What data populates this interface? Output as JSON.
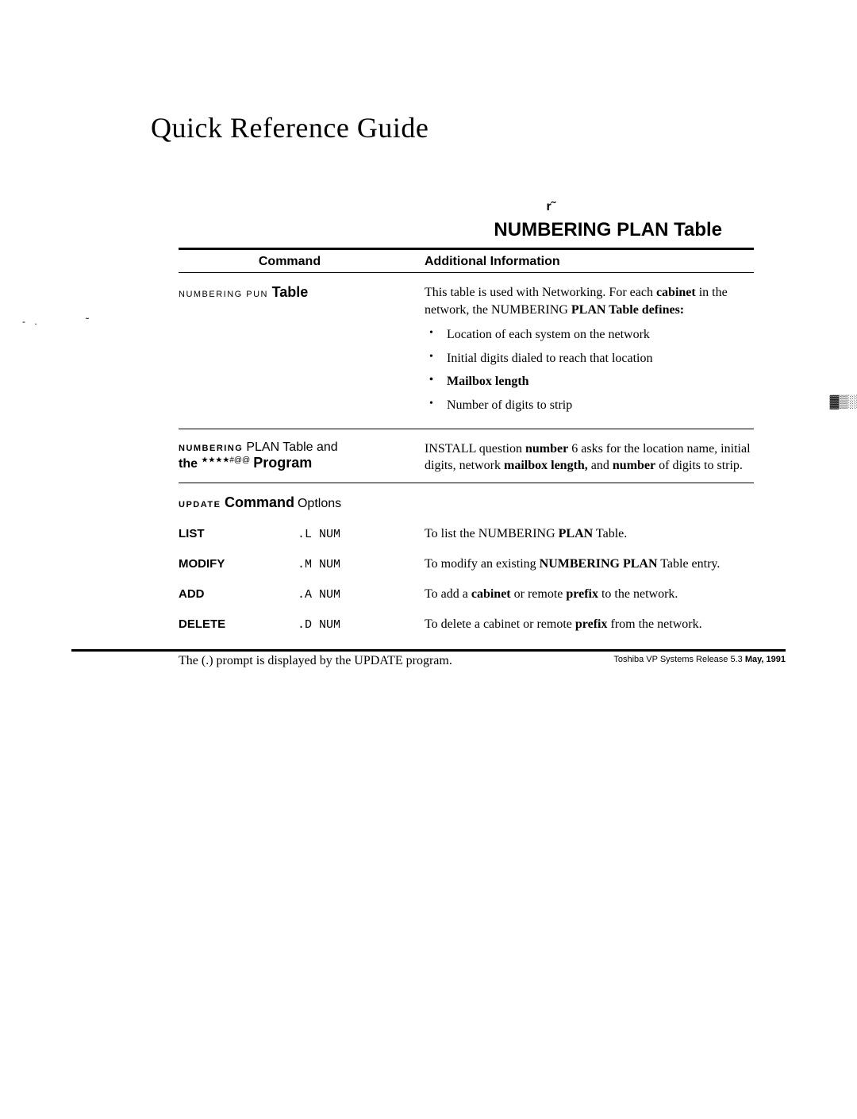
{
  "title": "Quick Reference Guide",
  "curl_mark": "r˜",
  "section_title_pre": "NUMBERING ",
  "section_title_mid": "PLAN",
  "section_title_post": " Table",
  "headers": {
    "command": "Command",
    "info": "Additional Information"
  },
  "margin_dots": "- .",
  "margin_tick": "˜",
  "edge_glyph": "▓▒░",
  "rows": {
    "r1": {
      "left_sc": "NUMBERING  PUN ",
      "left_bold": "Table",
      "desc_pre": "This table is used with Networking. For each ",
      "desc_bold1": "cabinet",
      "desc_mid": " in the network, the NUMBERING ",
      "desc_bold2": "PLAN Table defines:",
      "b1": "Location of each system on the network",
      "b2": "Initial digits dialed to reach that location",
      "b3": "Mailbox length",
      "b4": "Number of digits to strip"
    },
    "r2": {
      "left_sc1": "NUMBERING",
      "left_pl1": " PLAN Table and",
      "left_bold1": "the ",
      "left_glitch": "★★★★#@@",
      "left_bold2": " Program",
      "desc_pre": "INSTALL question ",
      "desc_b1": "number",
      "desc_mid1": " 6 asks for the location name, initial digits, network ",
      "desc_b2": "mailbox length,",
      "desc_mid2": " and ",
      "desc_b3": "number",
      "desc_post": " of digits to strip."
    }
  },
  "cmd_opt": {
    "sc": "UPDATE ",
    "bold": "Command",
    "tail": " Optlons"
  },
  "opts": {
    "o1": {
      "name": "LIST",
      "code": ".L NUM",
      "desc_pre": "To list the NUMBERING ",
      "desc_b": "PLAN",
      "desc_post": " Table."
    },
    "o2": {
      "name": "MODIFY",
      "code": ".M NUM",
      "desc_pre": "To modify an existing ",
      "desc_b": "NUMBERING PLAN",
      "desc_post": " Table entry."
    },
    "o3": {
      "name": "ADD",
      "code": ".A NUM",
      "desc_pre": "To add a ",
      "desc_b": "cabinet",
      "desc_mid": " or remote ",
      "desc_b2": "prefix",
      "desc_post": " to the network."
    },
    "o4": {
      "name": "DELETE",
      "code": ".D NUM",
      "desc_pre": "To delete a cabinet or remote ",
      "desc_b": "prefix",
      "desc_post": " from the network."
    }
  },
  "footnote": "The (.) prompt is displayed by the UPDATE program.",
  "footer_pre": "Toshiba VP Systems    Release 5.3    ",
  "footer_bold": "May, 1991"
}
